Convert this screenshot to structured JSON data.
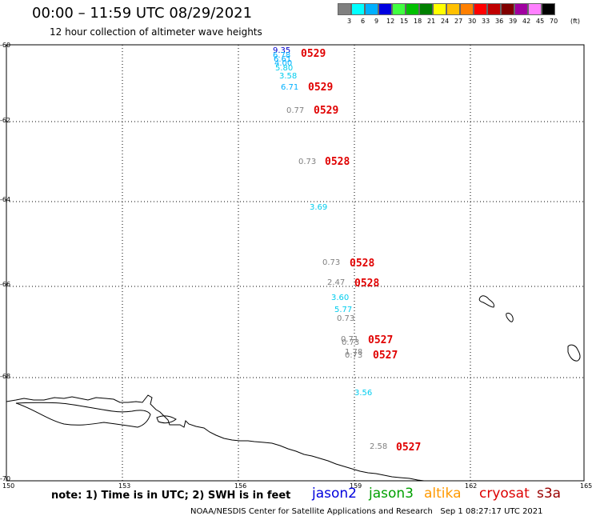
{
  "header": {
    "title": "00:00 – 11:59 UTC 08/29/2021",
    "subtitle": "12 hour collection of altimeter wave heights"
  },
  "legend": {
    "colors": [
      "#808080",
      "#00ffff",
      "#00b0ff",
      "#0000e0",
      "#40ff40",
      "#00c000",
      "#008000",
      "#ffff00",
      "#ffc000",
      "#ff8000",
      "#ff0000",
      "#c00000",
      "#800000",
      "#a000a0",
      "#ff80ff",
      "#000000"
    ],
    "labels": [
      "3",
      "6",
      "9",
      "12",
      "15",
      "18",
      "21",
      "24",
      "27",
      "30",
      "33",
      "36",
      "39",
      "42",
      "45",
      "70"
    ],
    "unit": "(ft)"
  },
  "axes": {
    "lat_labels": [
      "-60",
      "-62",
      "-64",
      "-66",
      "-68",
      "-70"
    ],
    "lon_labels": [
      "150",
      "153",
      "156",
      "159",
      "162",
      "165"
    ]
  },
  "observations": [
    {
      "value": "9.35",
      "color": "#0000cc"
    },
    {
      "value": "6.78",
      "color": "#00b0ff"
    },
    {
      "value": "6.61",
      "color": "#00b0ff"
    },
    {
      "value": "4.00",
      "color": "#00b0ff"
    },
    {
      "value": "5.80",
      "color": "#00ccee"
    },
    {
      "value": "3.58",
      "color": "#00ccee"
    },
    {
      "value": "6.71",
      "color": "#00b0ff"
    },
    {
      "value": "0.77",
      "color": "#808080"
    },
    {
      "value": "0.73",
      "color": "#808080"
    },
    {
      "value": "3.69",
      "color": "#00ccee"
    },
    {
      "value": "0.73",
      "color": "#808080"
    },
    {
      "value": "2.47",
      "color": "#808080"
    },
    {
      "value": "3.60",
      "color": "#00ccee"
    },
    {
      "value": "5.77",
      "color": "#00ccee"
    },
    {
      "value": "0.73",
      "color": "#808080"
    },
    {
      "value": "0.71",
      "color": "#808080"
    },
    {
      "value": "0.73",
      "color": "#808080"
    },
    {
      "value": "1.78",
      "color": "#808080"
    },
    {
      "value": "0.73",
      "color": "#808080"
    },
    {
      "value": "3.56",
      "color": "#00ccee"
    },
    {
      "value": "2.58",
      "color": "#808080"
    }
  ],
  "dates": [
    "0529",
    "0529",
    "0529",
    "0528",
    "0528",
    "0528",
    "0527",
    "0527",
    "0527"
  ],
  "footer": {
    "note": "note: 1) Time is in UTC; 2) SWH is in feet",
    "satellites": [
      {
        "name": "jason2",
        "color": "#0000dd"
      },
      {
        "name": "jason3",
        "color": "#00a000"
      },
      {
        "name": "altika",
        "color": "#ff9900"
      },
      {
        "name": "cryosat",
        "color": "#dd0000"
      },
      {
        "name": "s3a",
        "color": "#990000"
      }
    ],
    "credit": "NOAA/NESDIS Center for Satellite Applications and Research",
    "timestamp": "Sep  1 08:27:17 UTC 2021"
  }
}
